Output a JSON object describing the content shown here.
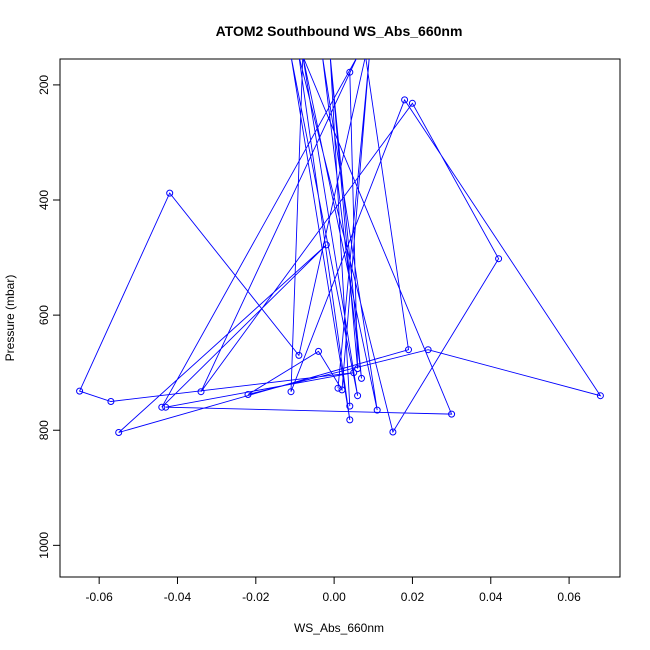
{
  "chart_data": {
    "type": "line",
    "title": "ATOM2 Southbound WS_Abs_660nm",
    "xlabel": "WS_Abs_660nm",
    "ylabel": "Pressure (mbar)",
    "xlim": [
      -0.07,
      0.073
    ],
    "ylim": [
      1055,
      155
    ],
    "y_reversed": true,
    "x_ticks": [
      -0.06,
      -0.04,
      -0.02,
      0.0,
      0.02,
      0.04,
      0.06
    ],
    "x_tick_labels": [
      "-0.06",
      "-0.04",
      "-0.02",
      "0.00",
      "0.02",
      "0.04",
      "0.06"
    ],
    "y_ticks": [
      200,
      400,
      600,
      800,
      1000
    ],
    "y_tick_labels": [
      "200",
      "400",
      "600",
      "800",
      "1000"
    ],
    "grid": false,
    "markers": "open-circle",
    "series_color": "#0000ff",
    "series": [
      {
        "x": [
          0.004,
          0.006,
          -0.001,
          0.004,
          -0.001,
          0.007,
          -0.003,
          0.011,
          -0.008,
          0.006,
          -0.011,
          0.004,
          -0.009,
          0.015,
          0.042,
          0.02,
          -0.034,
          0.006,
          -0.044,
          -0.002,
          -0.055,
          0.019,
          0.008,
          -0.009,
          -0.042,
          -0.065,
          -0.057,
          0.005,
          -0.043,
          0.03,
          -0.008,
          -0.011,
          0.018,
          0.068,
          0.024,
          -0.022,
          -0.004,
          0.002,
          0.009,
          0.001
        ],
        "y": [
          178,
          693,
          150,
          758,
          150,
          710,
          150,
          765,
          150,
          740,
          150,
          782,
          150,
          803,
          502,
          232,
          733,
          150,
          760,
          478,
          804,
          660,
          150,
          670,
          388,
          732,
          750,
          700,
          760,
          772,
          150,
          733,
          226,
          740,
          660,
          738,
          663,
          730,
          150,
          727
        ]
      }
    ]
  }
}
